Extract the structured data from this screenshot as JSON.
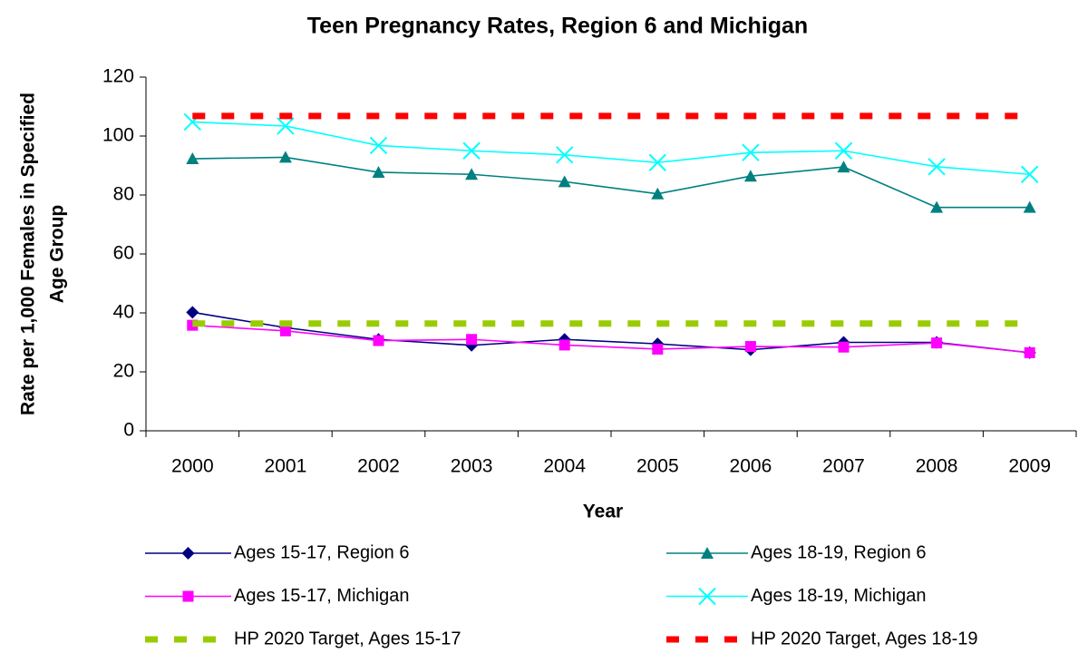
{
  "chart_data": {
    "type": "line",
    "title": "Teen Pregnancy Rates, Region 6 and Michigan",
    "x_label": "Year",
    "y_label": [
      "Rate per 1,000 Females in Specified",
      "Age Group"
    ],
    "categories": [
      "2000",
      "2001",
      "2002",
      "2003",
      "2004",
      "2005",
      "2006",
      "2007",
      "2008",
      "2009"
    ],
    "ylim": [
      0,
      120
    ],
    "yticks": [
      0,
      20,
      40,
      60,
      80,
      100,
      120
    ],
    "grid": false,
    "series": [
      {
        "name": "Ages 15-17, Region 6",
        "color": "#000080",
        "marker": "diamond",
        "dash": false,
        "values": [
          40.2,
          35,
          31,
          29,
          31,
          29.5,
          27.5,
          30,
          30,
          26.5
        ]
      },
      {
        "name": "Ages 18-19, Region 6",
        "color": "#008080",
        "marker": "triangle",
        "dash": false,
        "values": [
          92.3,
          92.8,
          87.7,
          87,
          84.5,
          80.4,
          86.4,
          89.5,
          75.8,
          75.8
        ]
      },
      {
        "name": "Ages 15-17, Michigan",
        "color": "#FF00FF",
        "marker": "square",
        "dash": false,
        "values": [
          35.8,
          33.9,
          30.6,
          31,
          29.1,
          27.7,
          28.6,
          28.4,
          29.8,
          26.5
        ]
      },
      {
        "name": "Ages 18-19, Michigan",
        "color": "#00FFFF",
        "marker": "x",
        "dash": false,
        "values": [
          104.8,
          103.4,
          96.8,
          95,
          93.6,
          91,
          94.4,
          95,
          89.6,
          87
        ]
      },
      {
        "name": "HP 2020 Target, Ages 15-17",
        "color": "#99CC00",
        "marker": "none",
        "dash": true,
        "values": [
          36.4,
          36.4,
          36.4,
          36.4,
          36.4,
          36.4,
          36.4,
          36.4,
          36.4,
          36.4
        ]
      },
      {
        "name": "HP 2020 Target, Ages 18-19",
        "color": "#FF0000",
        "marker": "none",
        "dash": true,
        "values": [
          106.8,
          106.8,
          106.8,
          106.8,
          106.8,
          106.8,
          106.8,
          106.8,
          106.8,
          106.8
        ]
      }
    ]
  }
}
